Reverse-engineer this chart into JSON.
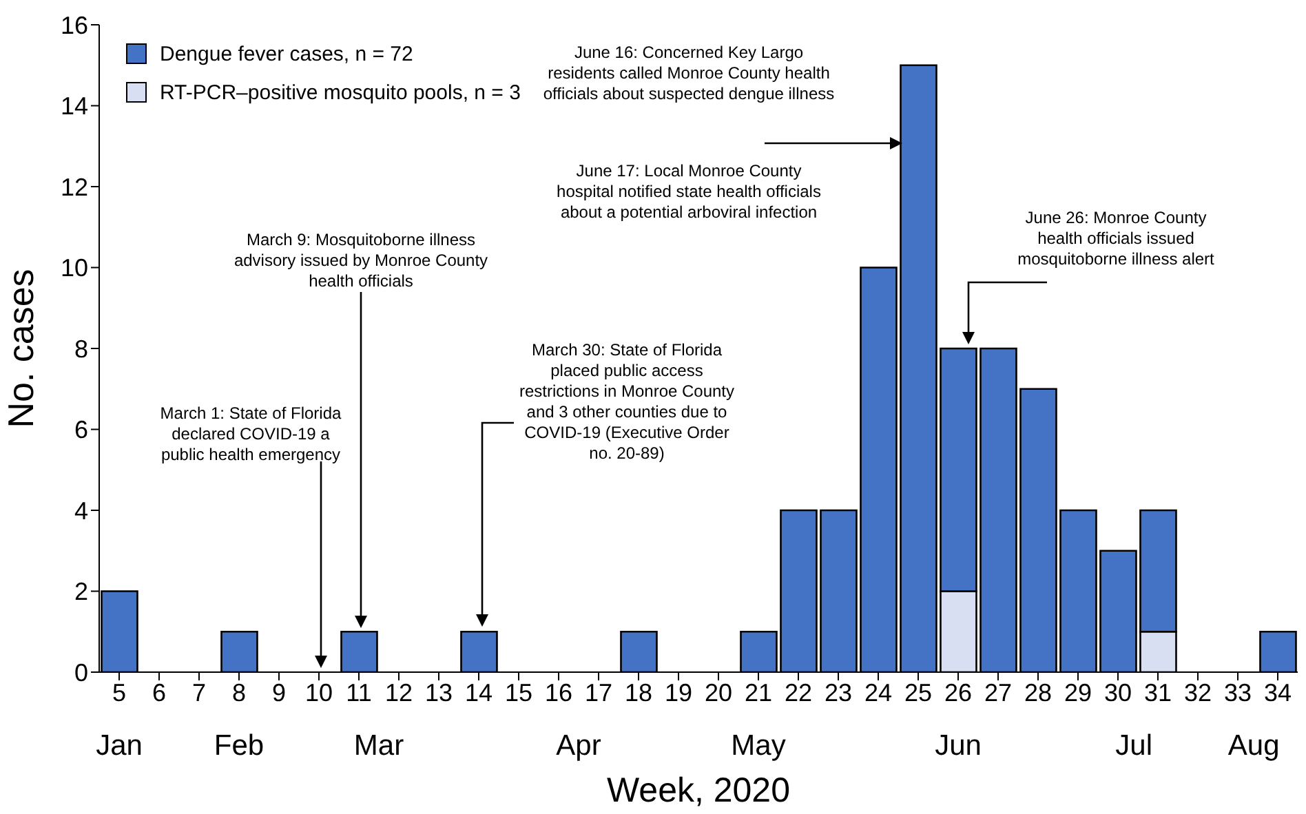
{
  "chart_data": {
    "type": "bar",
    "stacked": true,
    "xlabel": "Week, 2020",
    "ylabel": "No. cases",
    "categories": [
      "5",
      "6",
      "7",
      "8",
      "9",
      "10",
      "11",
      "12",
      "13",
      "14",
      "15",
      "16",
      "17",
      "18",
      "19",
      "20",
      "21",
      "22",
      "23",
      "24",
      "25",
      "26",
      "27",
      "28",
      "29",
      "30",
      "31",
      "32",
      "33",
      "34"
    ],
    "series": [
      {
        "name": "RT-PCR–positive mosquito pools, n = 3",
        "color": "#d9dff2",
        "values": [
          0,
          0,
          0,
          0,
          0,
          0,
          0,
          0,
          0,
          0,
          0,
          0,
          0,
          0,
          0,
          0,
          0,
          0,
          0,
          0,
          0,
          2,
          0,
          0,
          0,
          0,
          1,
          0,
          0,
          0
        ]
      },
      {
        "name": "Dengue fever cases, n = 72",
        "color": "#4472c4",
        "values": [
          2,
          0,
          0,
          1,
          0,
          0,
          1,
          0,
          0,
          1,
          0,
          0,
          0,
          1,
          0,
          0,
          1,
          4,
          4,
          10,
          15,
          6,
          8,
          7,
          4,
          3,
          3,
          0,
          0,
          1
        ]
      }
    ],
    "ylim": [
      0,
      16
    ],
    "yticks": [
      0,
      2,
      4,
      6,
      8,
      10,
      12,
      14,
      16
    ],
    "legend": "top left",
    "annotations": [
      "March 1: State of Florida declared COVID-19 a public health emergency",
      "March 9: Mosquitoborne illness advisory issued by Monroe County health officials",
      "March 30: State of Florida placed public access restrictions in Monroe County and 3 other counties due to COVID-19 (Executive Order no. 20-89)",
      "June 16: Concerned Key Largo residents called Monroe County health officials about suspected dengue illness",
      "June 17: Local Monroe County hospital notified state health officials about a potential arboviral infection",
      "June 26: Monroe County health officials issued mosquitoborne illness alert",
      "Jan",
      "Feb",
      "Mar",
      "Apr",
      "May",
      "Jun",
      "Jul",
      "Aug"
    ]
  }
}
